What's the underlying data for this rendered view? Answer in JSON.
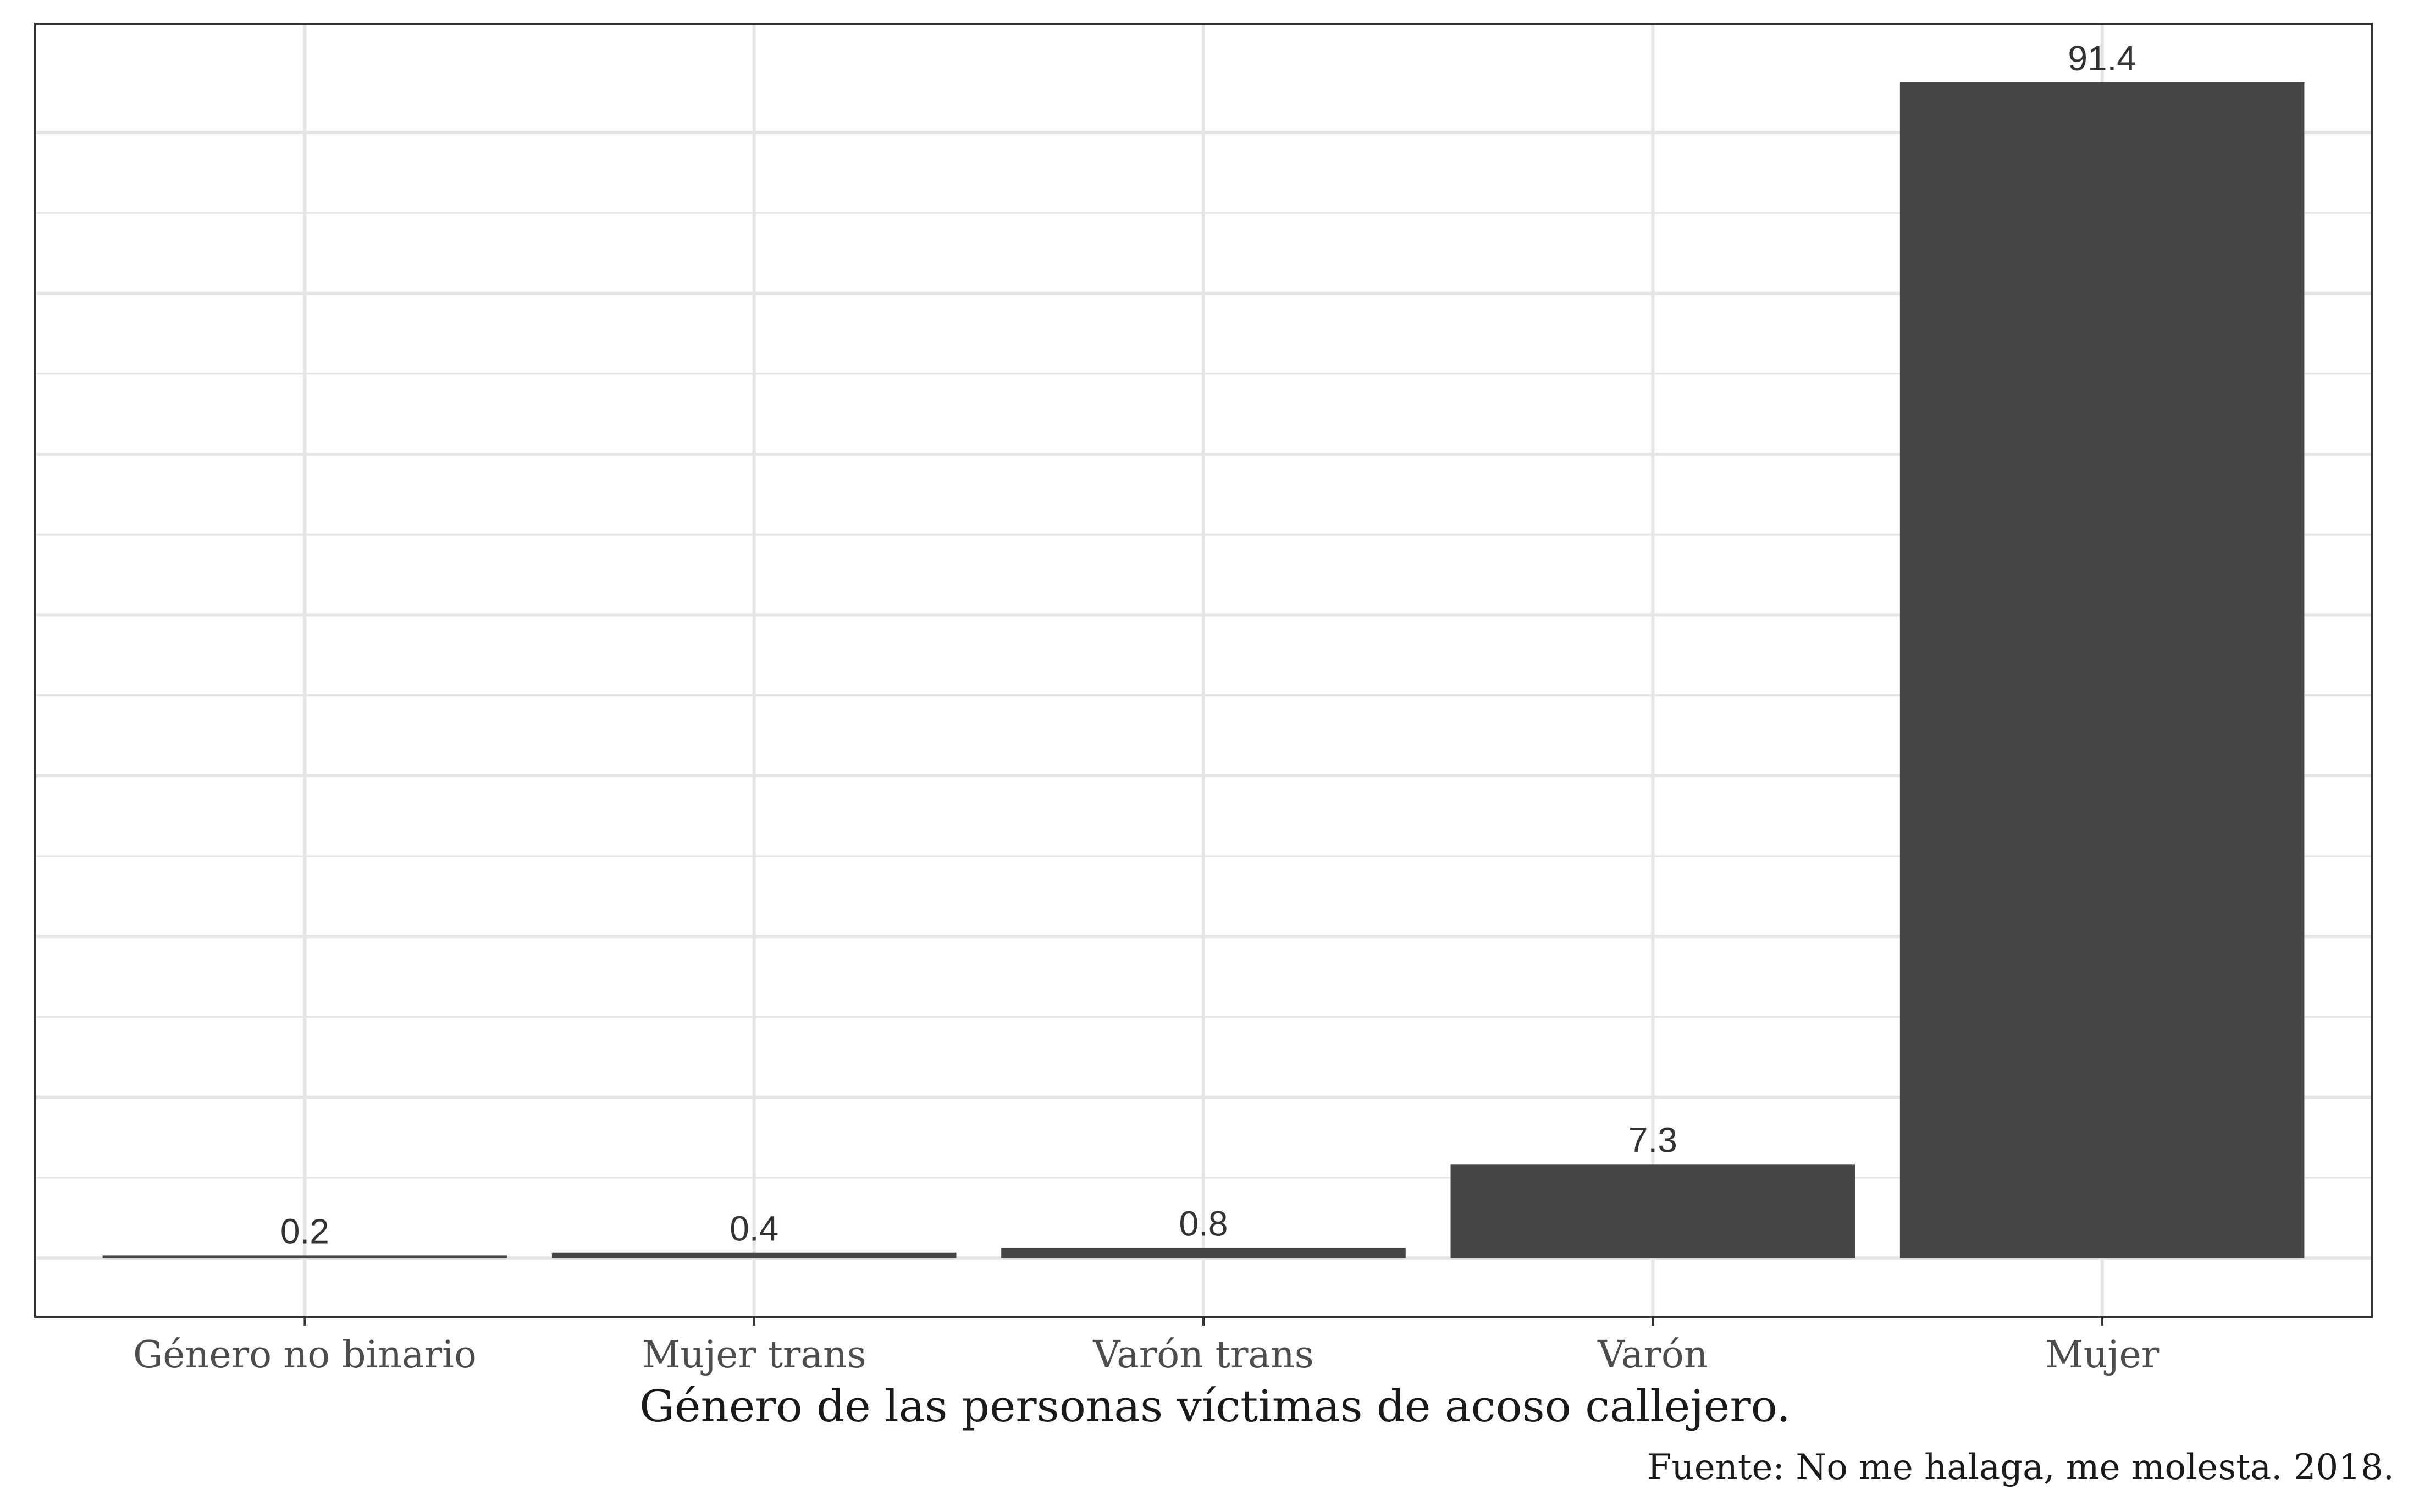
{
  "chart_data": {
    "type": "bar",
    "categories": [
      "Género no binario",
      "Mujer trans",
      "Varón trans",
      "Varón",
      "Mujer"
    ],
    "values": [
      0.2,
      0.4,
      0.8,
      7.3,
      91.4
    ],
    "value_labels": [
      "0.2",
      "0.4",
      "0.8",
      "7.3",
      "91.4"
    ],
    "xlabel": "Género de las personas víctimas de acoso callejero.",
    "ylabel": "",
    "caption": "Fuente: No me halaga, me molesta. 2018.",
    "ylim": [
      -4.57,
      95.97
    ],
    "y_gridlines": [
      0,
      12.5,
      25,
      37.5,
      50,
      62.5,
      75,
      87.5
    ],
    "y_tick_labels_shown": false,
    "grid": true,
    "legend": "none",
    "bar_color": "#454545",
    "grid_color": "#e5e5e5",
    "panel_border_color": "#333333"
  }
}
